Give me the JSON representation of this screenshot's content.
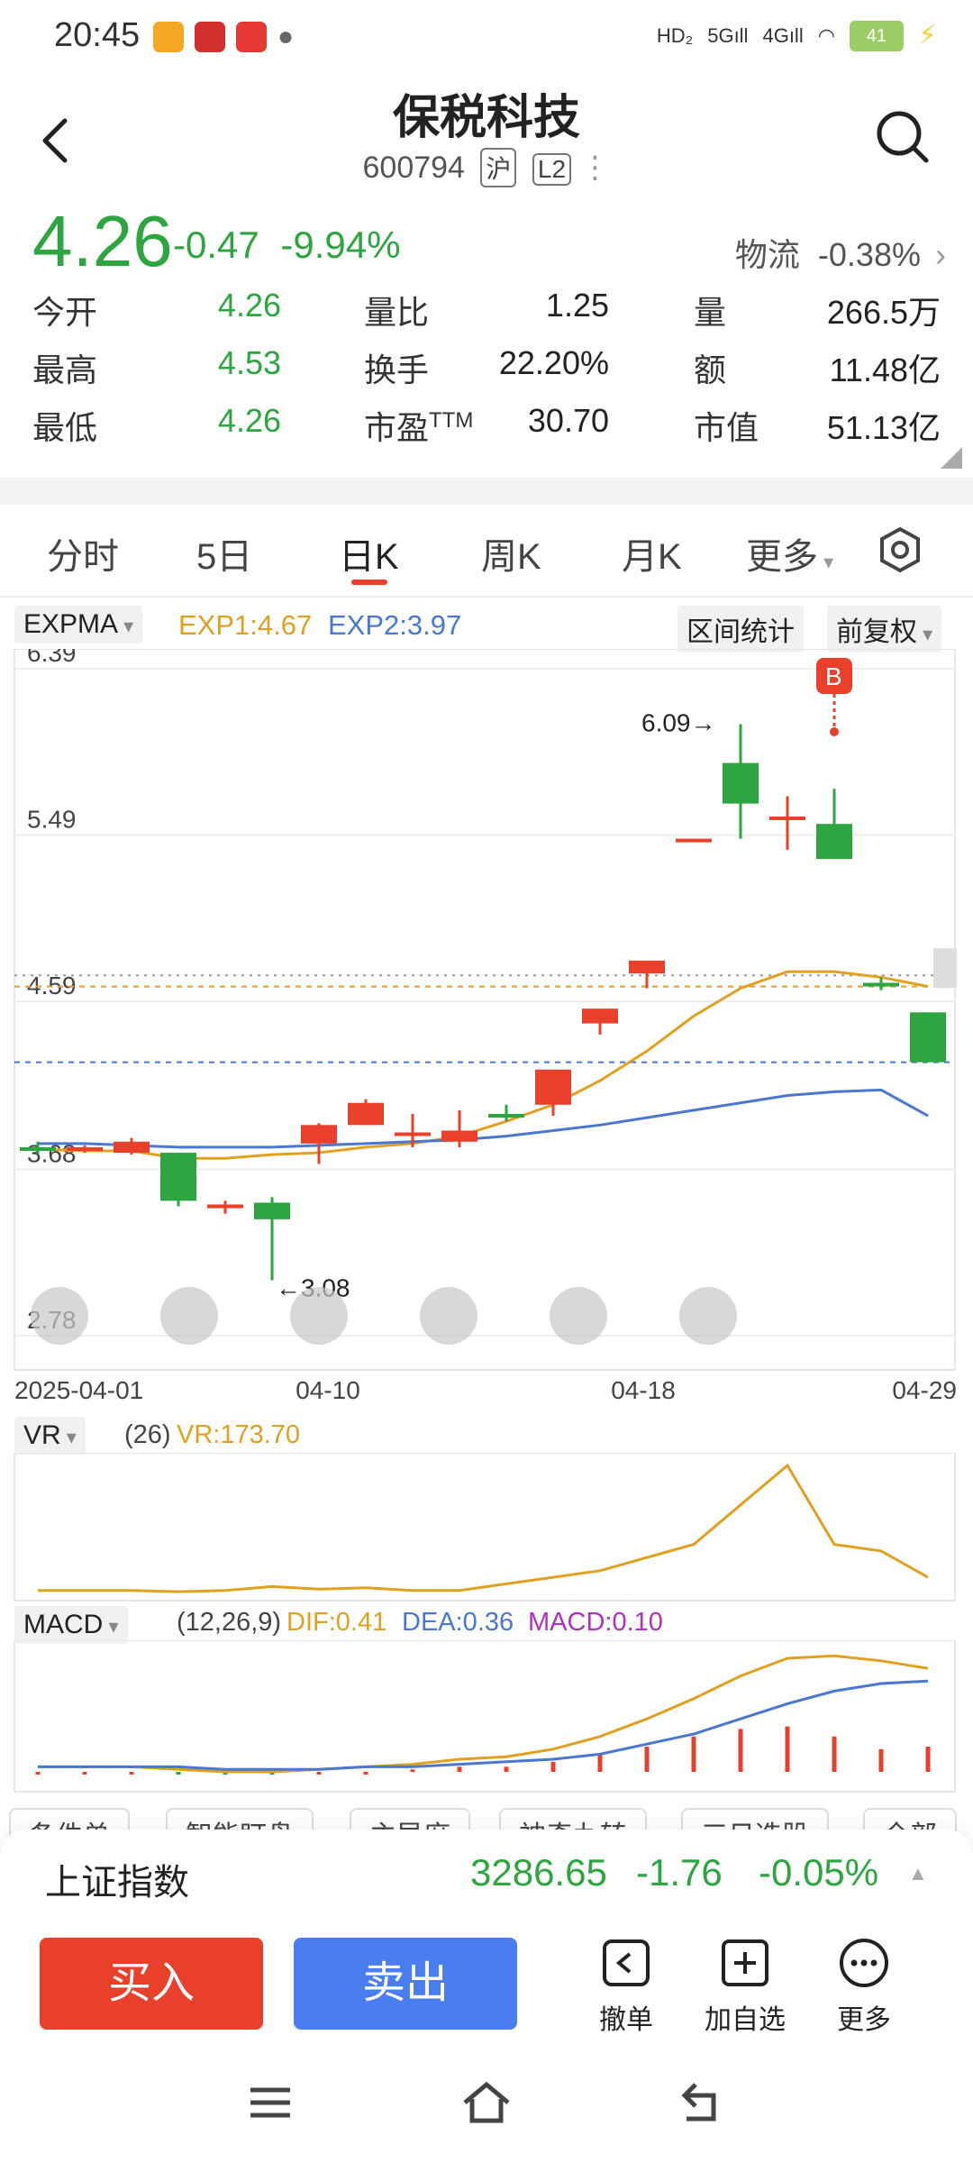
{
  "status_bar": {
    "time": "20:45",
    "battery": "41",
    "signal": [
      "HD",
      "5G",
      "4G"
    ]
  },
  "header": {
    "title": "保税科技",
    "code": "600794",
    "market_tag": "沪",
    "level_tag": "L2"
  },
  "quote": {
    "price": "4.26",
    "change": "-0.47",
    "change_pct": "-9.94%",
    "sector_name": "物流",
    "sector_pct": "-0.38%",
    "stats": [
      [
        {
          "label": "今开",
          "value": "4.26"
        },
        {
          "label": "量比",
          "value": "1.25"
        },
        {
          "label": "量",
          "value": "266.5万"
        }
      ],
      [
        {
          "label": "最高",
          "value": "4.53"
        },
        {
          "label": "换手",
          "value": "22.20%"
        },
        {
          "label": "额",
          "value": "11.48亿"
        }
      ],
      [
        {
          "label": "最低",
          "value": "4.26"
        },
        {
          "label": "市盈",
          "sup": "TTM",
          "value": "30.70"
        },
        {
          "label": "市值",
          "value": "51.13亿"
        }
      ]
    ]
  },
  "tabs": [
    "分时",
    "5日",
    "日K",
    "周K",
    "月K",
    "更多"
  ],
  "active_tab": "日K",
  "main_chart": {
    "indicator": "EXPMA",
    "exp1": "EXP1:4.67",
    "exp2": "EXP2:3.97",
    "range_stats": "区间统计",
    "adjust": "前复权",
    "y_ticks": [
      "6.39",
      "5.49",
      "4.59",
      "3.68",
      "2.78"
    ],
    "x_ticks": [
      "2025-04-01",
      "04-10",
      "04-18",
      "04-29"
    ],
    "high_label": "6.09→",
    "low_label": "←3.08",
    "buy_marker": "B"
  },
  "vr_panel": {
    "name": "VR",
    "params": "(26)",
    "value": "VR:173.70"
  },
  "macd_panel": {
    "name": "MACD",
    "params": "(12,26,9)",
    "dif": "DIF:0.41",
    "dea": "DEA:0.36",
    "macd": "MACD:0.10"
  },
  "chips": [
    "条件单",
    "智能盯盘",
    "主导席",
    "神奇九转",
    "三日选股",
    "全部"
  ],
  "index_bar": {
    "name": "上证指数",
    "value": "3286.65",
    "change": "-1.76",
    "pct": "-0.05%"
  },
  "actions": {
    "buy": "买入",
    "sell": "卖出",
    "cancel": "撤单",
    "watch": "加自选",
    "more": "更多"
  },
  "colors": {
    "up": "#e8402a",
    "down": "#2da540",
    "exp1": "#e0a020",
    "exp2": "#4a78d0",
    "buy_btn": "#e8402a",
    "sell_btn": "#4a7ef0"
  },
  "chart_data": {
    "type": "candlestick",
    "x": [
      "04-01",
      "04-02",
      "04-03",
      "04-07",
      "04-08",
      "04-09",
      "04-10",
      "04-11",
      "04-14",
      "04-15",
      "04-16",
      "04-17",
      "04-18",
      "04-21",
      "04-22",
      "04-23",
      "04-24",
      "04-25",
      "04-28",
      "04-29"
    ],
    "candles": [
      {
        "o": 3.8,
        "c": 3.78,
        "h": 3.83,
        "l": 3.76
      },
      {
        "o": 3.78,
        "c": 3.8,
        "h": 3.81,
        "l": 3.77
      },
      {
        "o": 3.77,
        "c": 3.83,
        "h": 3.85,
        "l": 3.76
      },
      {
        "o": 3.77,
        "c": 3.51,
        "h": 3.77,
        "l": 3.48
      },
      {
        "o": 3.47,
        "c": 3.49,
        "h": 3.51,
        "l": 3.44
      },
      {
        "o": 3.5,
        "c": 3.41,
        "h": 3.53,
        "l": 3.08
      },
      {
        "o": 3.82,
        "c": 3.92,
        "h": 3.93,
        "l": 3.71
      },
      {
        "o": 3.92,
        "c": 4.04,
        "h": 4.06,
        "l": 3.92
      },
      {
        "o": 3.87,
        "c": 3.88,
        "h": 3.98,
        "l": 3.8
      },
      {
        "o": 3.83,
        "c": 3.89,
        "h": 4.0,
        "l": 3.8
      },
      {
        "o": 3.98,
        "c": 3.96,
        "h": 4.03,
        "l": 3.94
      },
      {
        "o": 4.03,
        "c": 4.22,
        "h": 4.22,
        "l": 3.97
      },
      {
        "o": 4.47,
        "c": 4.55,
        "h": 4.55,
        "l": 4.41
      },
      {
        "o": 4.74,
        "c": 4.81,
        "h": 4.81,
        "l": 4.66
      },
      {
        "o": 5.47,
        "c": 5.47,
        "h": 5.47,
        "l": 5.47
      },
      {
        "o": 5.88,
        "c": 5.66,
        "h": 6.09,
        "l": 5.47
      },
      {
        "o": 5.59,
        "c": 5.59,
        "h": 5.7,
        "l": 5.41
      },
      {
        "o": 5.55,
        "c": 5.36,
        "h": 5.74,
        "l": 5.36
      },
      {
        "o": 4.69,
        "c": 4.67,
        "h": 4.72,
        "l": 4.65
      },
      {
        "o": 4.53,
        "c": 4.26,
        "h": 4.53,
        "l": 4.26
      }
    ],
    "exp1": [
      3.79,
      3.78,
      3.78,
      3.74,
      3.74,
      3.76,
      3.77,
      3.8,
      3.82,
      3.86,
      3.94,
      4.03,
      4.16,
      4.32,
      4.51,
      4.66,
      4.75,
      4.75,
      4.72,
      4.67
    ],
    "exp2": [
      3.82,
      3.82,
      3.81,
      3.8,
      3.8,
      3.8,
      3.81,
      3.82,
      3.83,
      3.84,
      3.86,
      3.89,
      3.92,
      3.96,
      4.0,
      4.04,
      4.08,
      4.1,
      4.11,
      3.97
    ],
    "vr": [
      0.05,
      0.05,
      0.05,
      0.04,
      0.05,
      0.08,
      0.06,
      0.07,
      0.05,
      0.05,
      0.1,
      0.15,
      0.2,
      0.3,
      0.4,
      0.7,
      1.0,
      0.4,
      0.35,
      0.15
    ],
    "macd_dif": [
      0.02,
      0.02,
      0.02,
      0.01,
      0.0,
      0.0,
      0.01,
      0.02,
      0.03,
      0.05,
      0.06,
      0.09,
      0.14,
      0.21,
      0.29,
      0.38,
      0.45,
      0.46,
      0.44,
      0.41
    ],
    "macd_dea": [
      0.02,
      0.02,
      0.02,
      0.02,
      0.01,
      0.01,
      0.01,
      0.02,
      0.02,
      0.03,
      0.04,
      0.05,
      0.07,
      0.11,
      0.15,
      0.21,
      0.27,
      0.32,
      0.35,
      0.36
    ],
    "macd_hist": [
      0.0,
      0.0,
      0.0,
      -0.01,
      -0.01,
      -0.01,
      0.0,
      0.0,
      0.01,
      0.02,
      0.02,
      0.04,
      0.07,
      0.1,
      0.14,
      0.17,
      0.18,
      0.14,
      0.09,
      0.1
    ],
    "ylim": [
      2.78,
      6.39
    ]
  }
}
